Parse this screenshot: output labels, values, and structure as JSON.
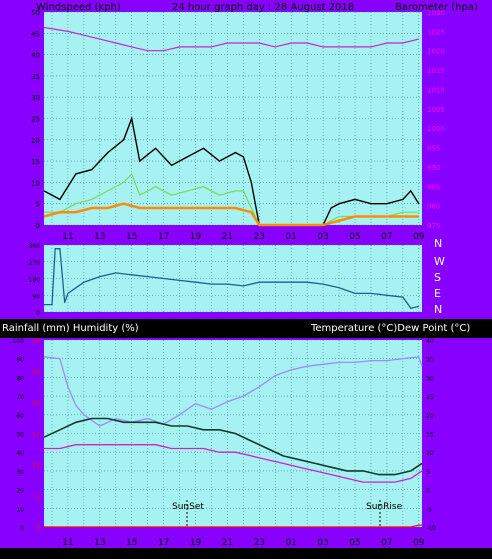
{
  "colors": {
    "frame": "#8800ff",
    "plot_bg": "#a6f2f2",
    "grid": "#2e8b8b",
    "gust": "#000000",
    "wind_avg": "#7ed957",
    "wind_fill": "#ff8c00",
    "barometer": "#cc22cc",
    "direction": "#1f5f8b",
    "rain": "#ff0000",
    "humidity": "#9a8cff",
    "temperature": "#103a2e",
    "dewpoint": "#cc22cc",
    "axis_text": "#000000",
    "right_axis_text": "#ff00ff",
    "rain_axis_text": "#ff0000"
  },
  "top_chart": {
    "left_title": "Windspeed (kph)",
    "center_title": "24 hour graph day : 28 August 2018",
    "right_title": "Barometer (hpa)"
  },
  "middle_chart": {
    "compass": [
      "N",
      "W",
      "S",
      "E",
      "N"
    ]
  },
  "bottom_chart": {
    "left_title": "Rainfall (mm)  Humidity (%)",
    "right_title": "Temperature (°C)Dew Point (°C)",
    "sunset_label": "SunSet",
    "sunrise_label": "SunRise"
  },
  "chart_data": [
    {
      "type": "line",
      "name": "wind-barometer",
      "x_labels": [
        "11",
        "13",
        "15",
        "17",
        "19",
        "21",
        "23",
        "01",
        "03",
        "05",
        "07",
        "09"
      ],
      "y_left_ticks": [
        0,
        5,
        10,
        15,
        20,
        25,
        30,
        35,
        40,
        45,
        50
      ],
      "y_right_ticks": [
        975,
        980,
        985,
        990,
        995,
        1000,
        1005,
        1010,
        1015,
        1020,
        1025,
        1030
      ],
      "y_left_range": [
        0,
        50
      ],
      "y_right_range": [
        975,
        1030
      ],
      "x_range": [
        9.5,
        33.2
      ],
      "series": [
        {
          "key": "gust",
          "hours": [
            9.5,
            10.5,
            11.5,
            12.5,
            13.5,
            14.5,
            15,
            15.5,
            16.5,
            17.5,
            18.5,
            19.5,
            20.5,
            21.5,
            22,
            22.5,
            23,
            26,
            27,
            27.5,
            28,
            29,
            30,
            31,
            32,
            32.5,
            33
          ],
          "values": [
            8,
            6,
            12,
            13,
            17,
            20,
            25,
            15,
            18,
            14,
            16,
            18,
            15,
            17,
            16,
            10,
            0,
            0,
            0,
            4,
            5,
            6,
            5,
            5,
            6,
            8,
            5
          ]
        },
        {
          "key": "wind_avg",
          "hours": [
            9.5,
            10.5,
            11.5,
            12.5,
            13.5,
            14.5,
            15,
            15.5,
            16.5,
            17.5,
            18.5,
            19.5,
            20.5,
            21.5,
            22,
            22.5,
            23,
            27,
            28,
            29,
            30,
            31,
            32,
            33
          ],
          "values": [
            3,
            3,
            5,
            6,
            8,
            10,
            12,
            7,
            9,
            7,
            8,
            9,
            7,
            8,
            8,
            4,
            0,
            0,
            2,
            2,
            2,
            2,
            3,
            3
          ]
        },
        {
          "key": "wind_fill",
          "hours": [
            9.5,
            10.5,
            11.5,
            12.5,
            13.5,
            14.5,
            15.5,
            16.5,
            17.5,
            18.5,
            19.5,
            20.5,
            21.5,
            22.5,
            23,
            27,
            28,
            29,
            30,
            31,
            32,
            33
          ],
          "values": [
            2,
            3,
            3,
            4,
            4,
            5,
            4,
            4,
            4,
            4,
            4,
            4,
            4,
            3,
            0,
            0,
            1,
            2,
            2,
            2,
            2,
            2
          ]
        },
        {
          "key": "barometer",
          "hours": [
            9.5,
            11,
            12,
            13,
            14,
            15,
            16,
            17,
            18,
            19,
            20,
            21,
            22,
            23,
            24,
            25,
            26,
            27,
            28,
            29,
            30,
            31,
            32,
            33
          ],
          "values": [
            1026,
            1025,
            1024,
            1023,
            1022,
            1021,
            1020,
            1020,
            1021,
            1021,
            1021,
            1022,
            1022,
            1022,
            1021,
            1022,
            1022,
            1021,
            1021,
            1021,
            1021,
            1022,
            1022,
            1023
          ]
        }
      ]
    },
    {
      "type": "line",
      "name": "wind-direction",
      "y_ticks": [
        360,
        270,
        180,
        90,
        0
      ],
      "y_tick_labels": [
        "360",
        "270",
        "180",
        "90",
        "0"
      ],
      "y_range": [
        0,
        360
      ],
      "x_range": [
        9.5,
        33.2
      ],
      "series": [
        {
          "key": "direction",
          "hours": [
            9.5,
            10,
            10.2,
            10.5,
            10.8,
            11,
            11.5,
            12,
            13,
            14,
            15,
            16,
            17,
            18,
            19,
            20,
            21,
            22,
            23,
            24,
            25,
            26,
            27,
            28,
            29,
            30,
            31,
            32,
            32.5,
            33
          ],
          "values": [
            40,
            40,
            340,
            340,
            50,
            100,
            130,
            160,
            190,
            210,
            200,
            190,
            180,
            170,
            160,
            150,
            150,
            140,
            160,
            160,
            160,
            160,
            150,
            130,
            100,
            100,
            90,
            80,
            20,
            30
          ]
        }
      ]
    },
    {
      "type": "line",
      "name": "rain-humidity-temperature",
      "x_labels": [
        "11",
        "13",
        "15",
        "17",
        "19",
        "21",
        "23",
        "01",
        "03",
        "05",
        "07",
        "09"
      ],
      "y_left_ticks": [
        0,
        10,
        20,
        30,
        40,
        50,
        60,
        70,
        80,
        90,
        100
      ],
      "y_right_ticks": [
        -10,
        -5,
        0,
        5,
        10,
        15,
        20,
        25,
        30,
        35,
        40
      ],
      "y_rain_ticks": [
        0,
        5,
        10,
        15,
        20,
        25,
        30
      ],
      "y_left_range": [
        0,
        100
      ],
      "y_right_range": [
        -10,
        40
      ],
      "x_range": [
        9.5,
        33.2
      ],
      "series": [
        {
          "key": "humidity",
          "hours": [
            9.5,
            10.5,
            11,
            11.5,
            12,
            13,
            14,
            15,
            16,
            17,
            18,
            19,
            20,
            21,
            22,
            23,
            24,
            25,
            26,
            27,
            28,
            29,
            30,
            31,
            32,
            33,
            33.2
          ],
          "values": [
            91,
            90,
            75,
            65,
            60,
            54,
            58,
            56,
            58,
            55,
            60,
            66,
            63,
            67,
            70,
            75,
            81,
            84,
            86,
            87,
            88,
            88,
            89,
            89,
            90,
            91,
            86
          ]
        },
        {
          "key": "temperature",
          "hours": [
            9.5,
            10.5,
            11.5,
            12.5,
            13.5,
            14.5,
            15.5,
            16.5,
            17.5,
            18.5,
            19.5,
            20.5,
            21.5,
            22.5,
            23.5,
            24.5,
            25.5,
            26.5,
            27.5,
            28.5,
            29.5,
            30.5,
            31.5,
            32.5,
            33.2
          ],
          "values": [
            14,
            16,
            18,
            19,
            19,
            18,
            18,
            18,
            17,
            17,
            16,
            16,
            15,
            13,
            11,
            9,
            8,
            7,
            6,
            5,
            5,
            4,
            4,
            5,
            7
          ]
        },
        {
          "key": "dewpoint",
          "hours": [
            9.5,
            10.5,
            11.5,
            12.5,
            13.5,
            14.5,
            15.5,
            16.5,
            17.5,
            18.5,
            19.5,
            20.5,
            21.5,
            22.5,
            23.5,
            24.5,
            25.5,
            26.5,
            27.5,
            28.5,
            29.5,
            30.5,
            31.5,
            32.5,
            33.2
          ],
          "values": [
            11,
            11,
            12,
            12,
            12,
            12,
            12,
            12,
            11,
            11,
            11,
            10,
            10,
            9,
            8,
            7,
            6,
            5,
            4,
            3,
            2,
            2,
            2,
            3,
            5
          ]
        },
        {
          "key": "rain",
          "hours": [
            9.5,
            32.5,
            33.0,
            33.2
          ],
          "values": [
            0,
            0,
            0.3,
            0.3
          ]
        }
      ]
    }
  ]
}
